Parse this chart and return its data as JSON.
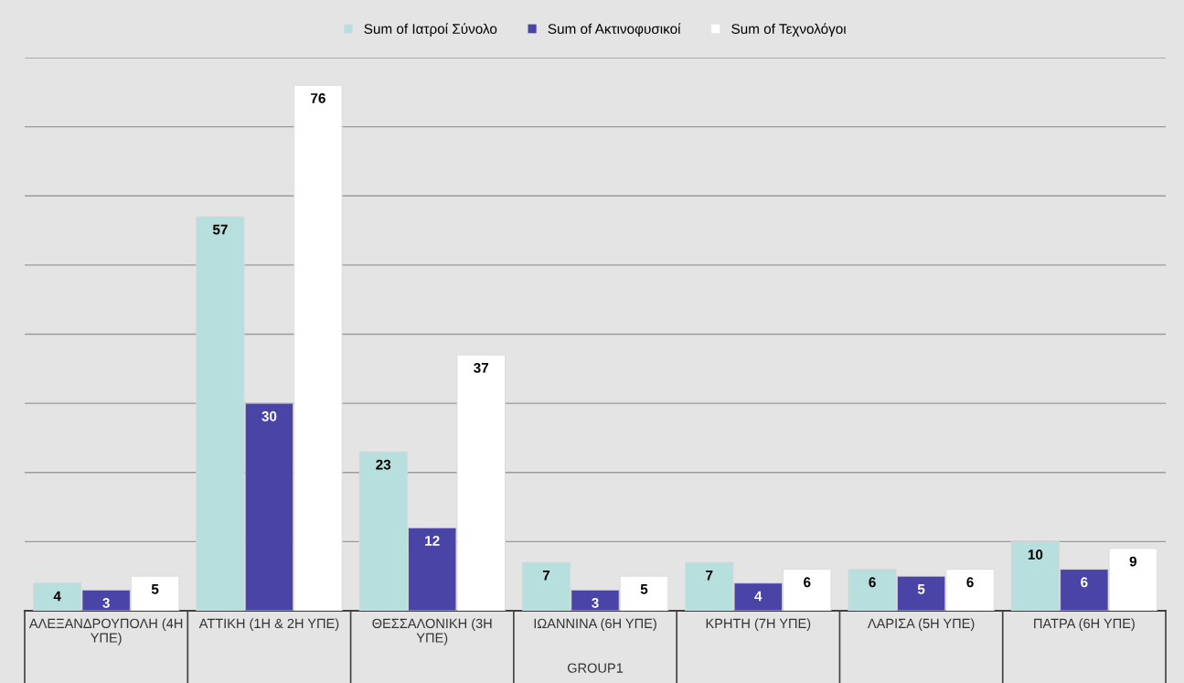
{
  "chart_data": {
    "type": "bar",
    "xlabel": "GROUP1",
    "categories": [
      "ΑΛΕΞΑΝΔΡΟΥΠΟΛΗ (4Η ΥΠΕ)",
      "ΑΤΤΙΚΗ (1Η & 2Η ΥΠΕ)",
      "ΘΕΣΣΑΛΟΝΙΚΗ (3Η ΥΠΕ)",
      "ΙΩΑΝΝΙΝΑ (6Η ΥΠΕ)",
      "ΚΡΗΤΗ (7Η ΥΠΕ)",
      "ΛΑΡΙΣΑ (5Η ΥΠΕ)",
      "ΠΑΤΡΑ (6Η ΥΠΕ)"
    ],
    "series": [
      {
        "name": "Sum of Ιατροί Σύνολο",
        "color": "#b7dfdd",
        "values": [
          4,
          57,
          23,
          7,
          7,
          6,
          10
        ]
      },
      {
        "name": "Sum of Ακτινοφυσικοί",
        "color": "#4a44a6",
        "values": [
          3,
          30,
          12,
          3,
          4,
          5,
          6
        ]
      },
      {
        "name": "Sum of Τεχνολόγοι",
        "color": "#ffffff",
        "values": [
          5,
          76,
          37,
          5,
          6,
          6,
          9
        ]
      }
    ],
    "ylim": [
      0,
      80
    ],
    "yticks": [
      {
        "value": 0,
        "label": null
      },
      {
        "value": 10,
        "label": null
      },
      {
        "value": 20,
        "label": null
      },
      {
        "value": 30,
        "label": null
      },
      {
        "value": 40,
        "label": null
      },
      {
        "value": 50,
        "label": null
      },
      {
        "value": 60,
        "label": null
      },
      {
        "value": 70,
        "label": null
      },
      {
        "value": 80,
        "label": null
      }
    ],
    "tick_labels": "x",
    "grid": "y",
    "legend": "top",
    "data_labels": true
  }
}
